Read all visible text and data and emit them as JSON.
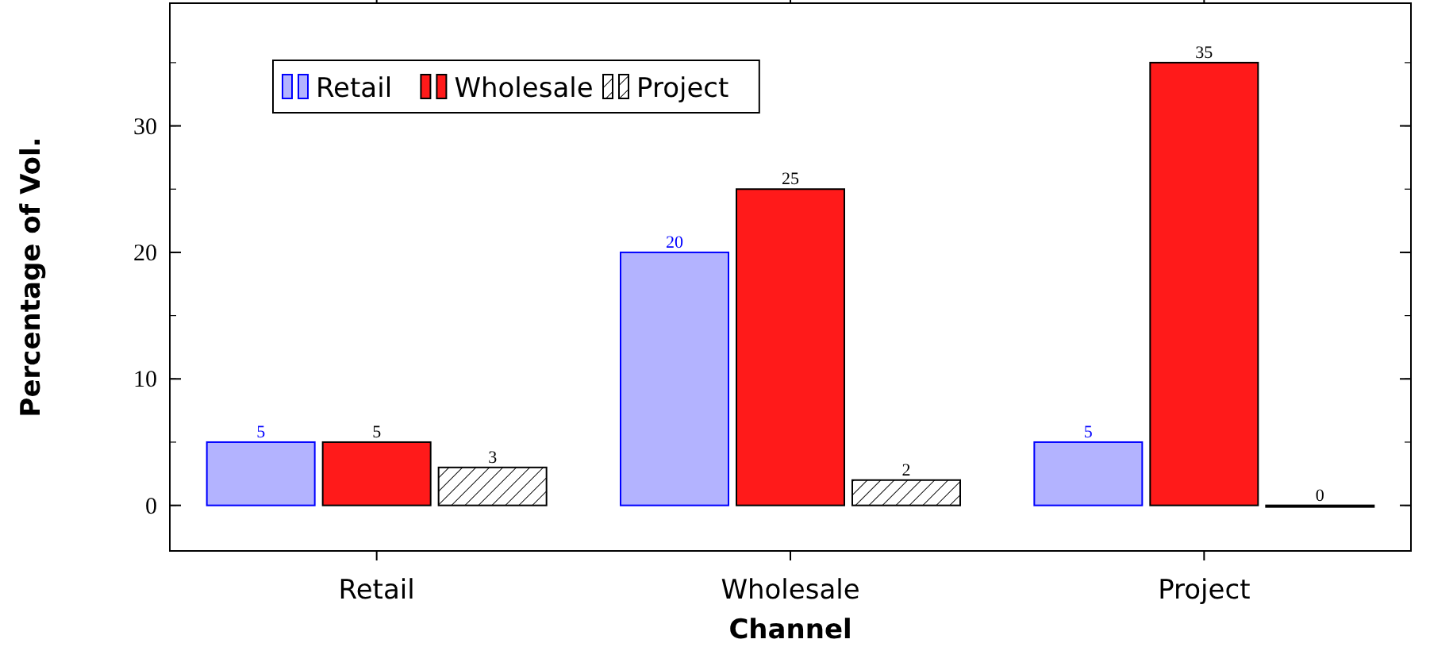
{
  "chart_data": {
    "type": "bar",
    "xlabel": "Channel",
    "ylabel": "Percentage of Vol.",
    "categories": [
      "Retail",
      "Wholesale",
      "Project"
    ],
    "series": [
      {
        "name": "Retail",
        "color": "#b3b3ff",
        "values": [
          5,
          20,
          5
        ]
      },
      {
        "name": "Wholesale",
        "color": "#ff1a1a",
        "values": [
          5,
          25,
          35
        ]
      },
      {
        "name": "Project",
        "color": "#000000",
        "values": [
          3,
          2,
          0
        ]
      }
    ],
    "ylim": [
      -3.6,
      39.7
    ],
    "yticks": [
      0,
      10,
      20,
      30
    ],
    "data_labels": true,
    "legend": "top left",
    "grid": false
  }
}
